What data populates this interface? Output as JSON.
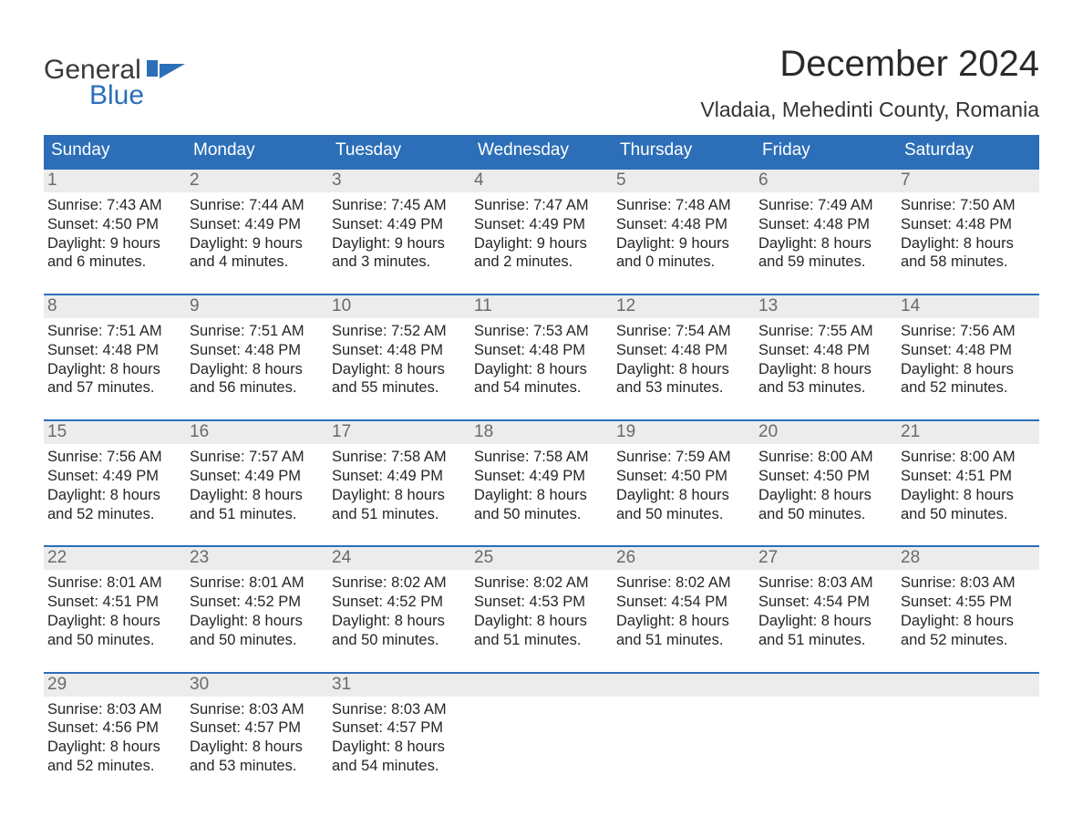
{
  "logo": {
    "text1": "General",
    "text2": "Blue",
    "color1": "#3a3a3a",
    "color2": "#2c6fb8"
  },
  "title": "December 2024",
  "location": "Vladaia, Mehedinti County, Romania",
  "colors": {
    "header_bg": "#2c6fb8",
    "header_text": "#ffffff",
    "daynum_bg": "#ececec",
    "daynum_text": "#6a6a6a",
    "body_text": "#262626",
    "row_border": "#2c6fb8",
    "page_bg": "#ffffff"
  },
  "typography": {
    "title_fontsize": 40,
    "location_fontsize": 23,
    "header_fontsize": 19,
    "daynum_fontsize": 19,
    "body_fontsize": 16.5,
    "font_family": "Arial"
  },
  "days_of_week": [
    "Sunday",
    "Monday",
    "Tuesday",
    "Wednesday",
    "Thursday",
    "Friday",
    "Saturday"
  ],
  "weeks": [
    [
      {
        "num": "1",
        "sunrise": "Sunrise: 7:43 AM",
        "sunset": "Sunset: 4:50 PM",
        "d1": "Daylight: 9 hours",
        "d2": "and 6 minutes."
      },
      {
        "num": "2",
        "sunrise": "Sunrise: 7:44 AM",
        "sunset": "Sunset: 4:49 PM",
        "d1": "Daylight: 9 hours",
        "d2": "and 4 minutes."
      },
      {
        "num": "3",
        "sunrise": "Sunrise: 7:45 AM",
        "sunset": "Sunset: 4:49 PM",
        "d1": "Daylight: 9 hours",
        "d2": "and 3 minutes."
      },
      {
        "num": "4",
        "sunrise": "Sunrise: 7:47 AM",
        "sunset": "Sunset: 4:49 PM",
        "d1": "Daylight: 9 hours",
        "d2": "and 2 minutes."
      },
      {
        "num": "5",
        "sunrise": "Sunrise: 7:48 AM",
        "sunset": "Sunset: 4:48 PM",
        "d1": "Daylight: 9 hours",
        "d2": "and 0 minutes."
      },
      {
        "num": "6",
        "sunrise": "Sunrise: 7:49 AM",
        "sunset": "Sunset: 4:48 PM",
        "d1": "Daylight: 8 hours",
        "d2": "and 59 minutes."
      },
      {
        "num": "7",
        "sunrise": "Sunrise: 7:50 AM",
        "sunset": "Sunset: 4:48 PM",
        "d1": "Daylight: 8 hours",
        "d2": "and 58 minutes."
      }
    ],
    [
      {
        "num": "8",
        "sunrise": "Sunrise: 7:51 AM",
        "sunset": "Sunset: 4:48 PM",
        "d1": "Daylight: 8 hours",
        "d2": "and 57 minutes."
      },
      {
        "num": "9",
        "sunrise": "Sunrise: 7:51 AM",
        "sunset": "Sunset: 4:48 PM",
        "d1": "Daylight: 8 hours",
        "d2": "and 56 minutes."
      },
      {
        "num": "10",
        "sunrise": "Sunrise: 7:52 AM",
        "sunset": "Sunset: 4:48 PM",
        "d1": "Daylight: 8 hours",
        "d2": "and 55 minutes."
      },
      {
        "num": "11",
        "sunrise": "Sunrise: 7:53 AM",
        "sunset": "Sunset: 4:48 PM",
        "d1": "Daylight: 8 hours",
        "d2": "and 54 minutes."
      },
      {
        "num": "12",
        "sunrise": "Sunrise: 7:54 AM",
        "sunset": "Sunset: 4:48 PM",
        "d1": "Daylight: 8 hours",
        "d2": "and 53 minutes."
      },
      {
        "num": "13",
        "sunrise": "Sunrise: 7:55 AM",
        "sunset": "Sunset: 4:48 PM",
        "d1": "Daylight: 8 hours",
        "d2": "and 53 minutes."
      },
      {
        "num": "14",
        "sunrise": "Sunrise: 7:56 AM",
        "sunset": "Sunset: 4:48 PM",
        "d1": "Daylight: 8 hours",
        "d2": "and 52 minutes."
      }
    ],
    [
      {
        "num": "15",
        "sunrise": "Sunrise: 7:56 AM",
        "sunset": "Sunset: 4:49 PM",
        "d1": "Daylight: 8 hours",
        "d2": "and 52 minutes."
      },
      {
        "num": "16",
        "sunrise": "Sunrise: 7:57 AM",
        "sunset": "Sunset: 4:49 PM",
        "d1": "Daylight: 8 hours",
        "d2": "and 51 minutes."
      },
      {
        "num": "17",
        "sunrise": "Sunrise: 7:58 AM",
        "sunset": "Sunset: 4:49 PM",
        "d1": "Daylight: 8 hours",
        "d2": "and 51 minutes."
      },
      {
        "num": "18",
        "sunrise": "Sunrise: 7:58 AM",
        "sunset": "Sunset: 4:49 PM",
        "d1": "Daylight: 8 hours",
        "d2": "and 50 minutes."
      },
      {
        "num": "19",
        "sunrise": "Sunrise: 7:59 AM",
        "sunset": "Sunset: 4:50 PM",
        "d1": "Daylight: 8 hours",
        "d2": "and 50 minutes."
      },
      {
        "num": "20",
        "sunrise": "Sunrise: 8:00 AM",
        "sunset": "Sunset: 4:50 PM",
        "d1": "Daylight: 8 hours",
        "d2": "and 50 minutes."
      },
      {
        "num": "21",
        "sunrise": "Sunrise: 8:00 AM",
        "sunset": "Sunset: 4:51 PM",
        "d1": "Daylight: 8 hours",
        "d2": "and 50 minutes."
      }
    ],
    [
      {
        "num": "22",
        "sunrise": "Sunrise: 8:01 AM",
        "sunset": "Sunset: 4:51 PM",
        "d1": "Daylight: 8 hours",
        "d2": "and 50 minutes."
      },
      {
        "num": "23",
        "sunrise": "Sunrise: 8:01 AM",
        "sunset": "Sunset: 4:52 PM",
        "d1": "Daylight: 8 hours",
        "d2": "and 50 minutes."
      },
      {
        "num": "24",
        "sunrise": "Sunrise: 8:02 AM",
        "sunset": "Sunset: 4:52 PM",
        "d1": "Daylight: 8 hours",
        "d2": "and 50 minutes."
      },
      {
        "num": "25",
        "sunrise": "Sunrise: 8:02 AM",
        "sunset": "Sunset: 4:53 PM",
        "d1": "Daylight: 8 hours",
        "d2": "and 51 minutes."
      },
      {
        "num": "26",
        "sunrise": "Sunrise: 8:02 AM",
        "sunset": "Sunset: 4:54 PM",
        "d1": "Daylight: 8 hours",
        "d2": "and 51 minutes."
      },
      {
        "num": "27",
        "sunrise": "Sunrise: 8:03 AM",
        "sunset": "Sunset: 4:54 PM",
        "d1": "Daylight: 8 hours",
        "d2": "and 51 minutes."
      },
      {
        "num": "28",
        "sunrise": "Sunrise: 8:03 AM",
        "sunset": "Sunset: 4:55 PM",
        "d1": "Daylight: 8 hours",
        "d2": "and 52 minutes."
      }
    ],
    [
      {
        "num": "29",
        "sunrise": "Sunrise: 8:03 AM",
        "sunset": "Sunset: 4:56 PM",
        "d1": "Daylight: 8 hours",
        "d2": "and 52 minutes."
      },
      {
        "num": "30",
        "sunrise": "Sunrise: 8:03 AM",
        "sunset": "Sunset: 4:57 PM",
        "d1": "Daylight: 8 hours",
        "d2": "and 53 minutes."
      },
      {
        "num": "31",
        "sunrise": "Sunrise: 8:03 AM",
        "sunset": "Sunset: 4:57 PM",
        "d1": "Daylight: 8 hours",
        "d2": "and 54 minutes."
      },
      {
        "empty": true
      },
      {
        "empty": true
      },
      {
        "empty": true
      },
      {
        "empty": true
      }
    ]
  ]
}
